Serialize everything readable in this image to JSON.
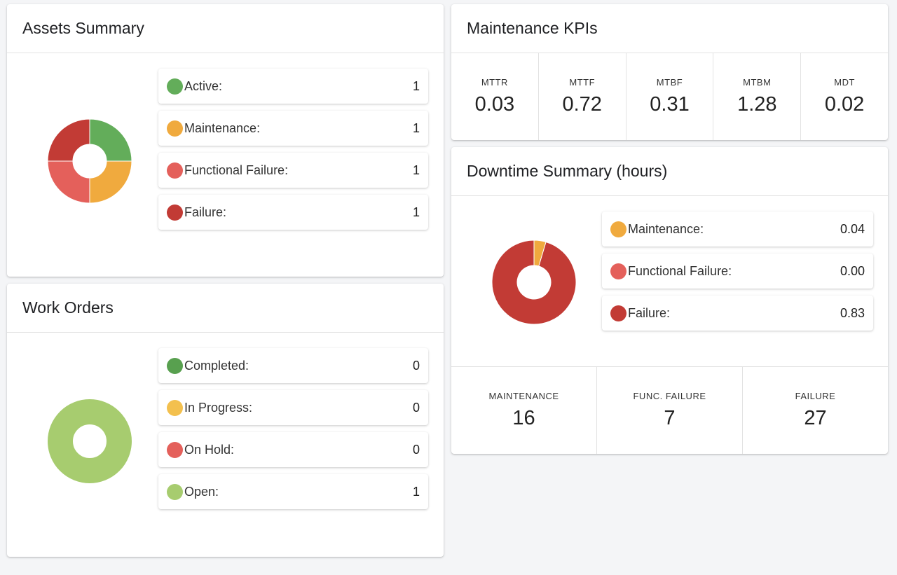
{
  "colors": {
    "active": "#63ad5a",
    "maintenance": "#f0aa3e",
    "functional_failure": "#e4605b",
    "failure": "#c23b35",
    "completed": "#58a04f",
    "in_progress": "#f3c04e",
    "on_hold": "#e4605b",
    "open": "#a7cc6f"
  },
  "assets_summary": {
    "title": "Assets Summary",
    "items": [
      {
        "label": "Active:",
        "value": "1",
        "color": "#63ad5a"
      },
      {
        "label": "Maintenance:",
        "value": "1",
        "color": "#f0aa3e"
      },
      {
        "label": "Functional Failure:",
        "value": "1",
        "color": "#e4605b"
      },
      {
        "label": "Failure:",
        "value": "1",
        "color": "#c23b35"
      }
    ]
  },
  "work_orders": {
    "title": "Work Orders",
    "items": [
      {
        "label": "Completed:",
        "value": "0",
        "color": "#58a04f"
      },
      {
        "label": "In Progress:",
        "value": "0",
        "color": "#f3c04e"
      },
      {
        "label": "On Hold:",
        "value": "0",
        "color": "#e4605b"
      },
      {
        "label": "Open:",
        "value": "1",
        "color": "#a7cc6f"
      }
    ]
  },
  "maintenance_kpis": {
    "title": "Maintenance KPIs",
    "items": [
      {
        "label": "MTTR",
        "value": "0.03"
      },
      {
        "label": "MTTF",
        "value": "0.72"
      },
      {
        "label": "MTBF",
        "value": "0.31"
      },
      {
        "label": "MTBM",
        "value": "1.28"
      },
      {
        "label": "MDT",
        "value": "0.02"
      }
    ]
  },
  "downtime_summary": {
    "title": "Downtime Summary (hours)",
    "items": [
      {
        "label": "Maintenance:",
        "value": "0.04",
        "color": "#f0aa3e"
      },
      {
        "label": "Functional Failure:",
        "value": "0.00",
        "color": "#e4605b"
      },
      {
        "label": "Failure:",
        "value": "0.83",
        "color": "#c23b35"
      }
    ],
    "counts": [
      {
        "label": "MAINTENANCE",
        "value": "16"
      },
      {
        "label": "FUNC. FAILURE",
        "value": "7"
      },
      {
        "label": "FAILURE",
        "value": "27"
      }
    ]
  }
}
